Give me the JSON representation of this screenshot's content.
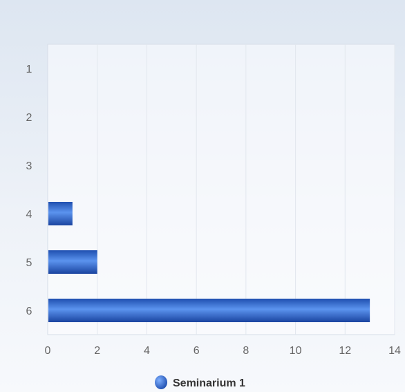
{
  "chart_data": {
    "type": "bar",
    "orientation": "horizontal",
    "categories": [
      "1",
      "2",
      "3",
      "4",
      "5",
      "6"
    ],
    "series": [
      {
        "name": "Seminarium 1",
        "values": [
          0,
          0,
          0,
          1,
          2,
          13
        ],
        "color": "#2f6bd6"
      }
    ],
    "xlim": [
      0,
      14
    ],
    "xticks": [
      0,
      2,
      4,
      6,
      8,
      10,
      12,
      14
    ],
    "grid": true,
    "legend": "bottom-center"
  }
}
